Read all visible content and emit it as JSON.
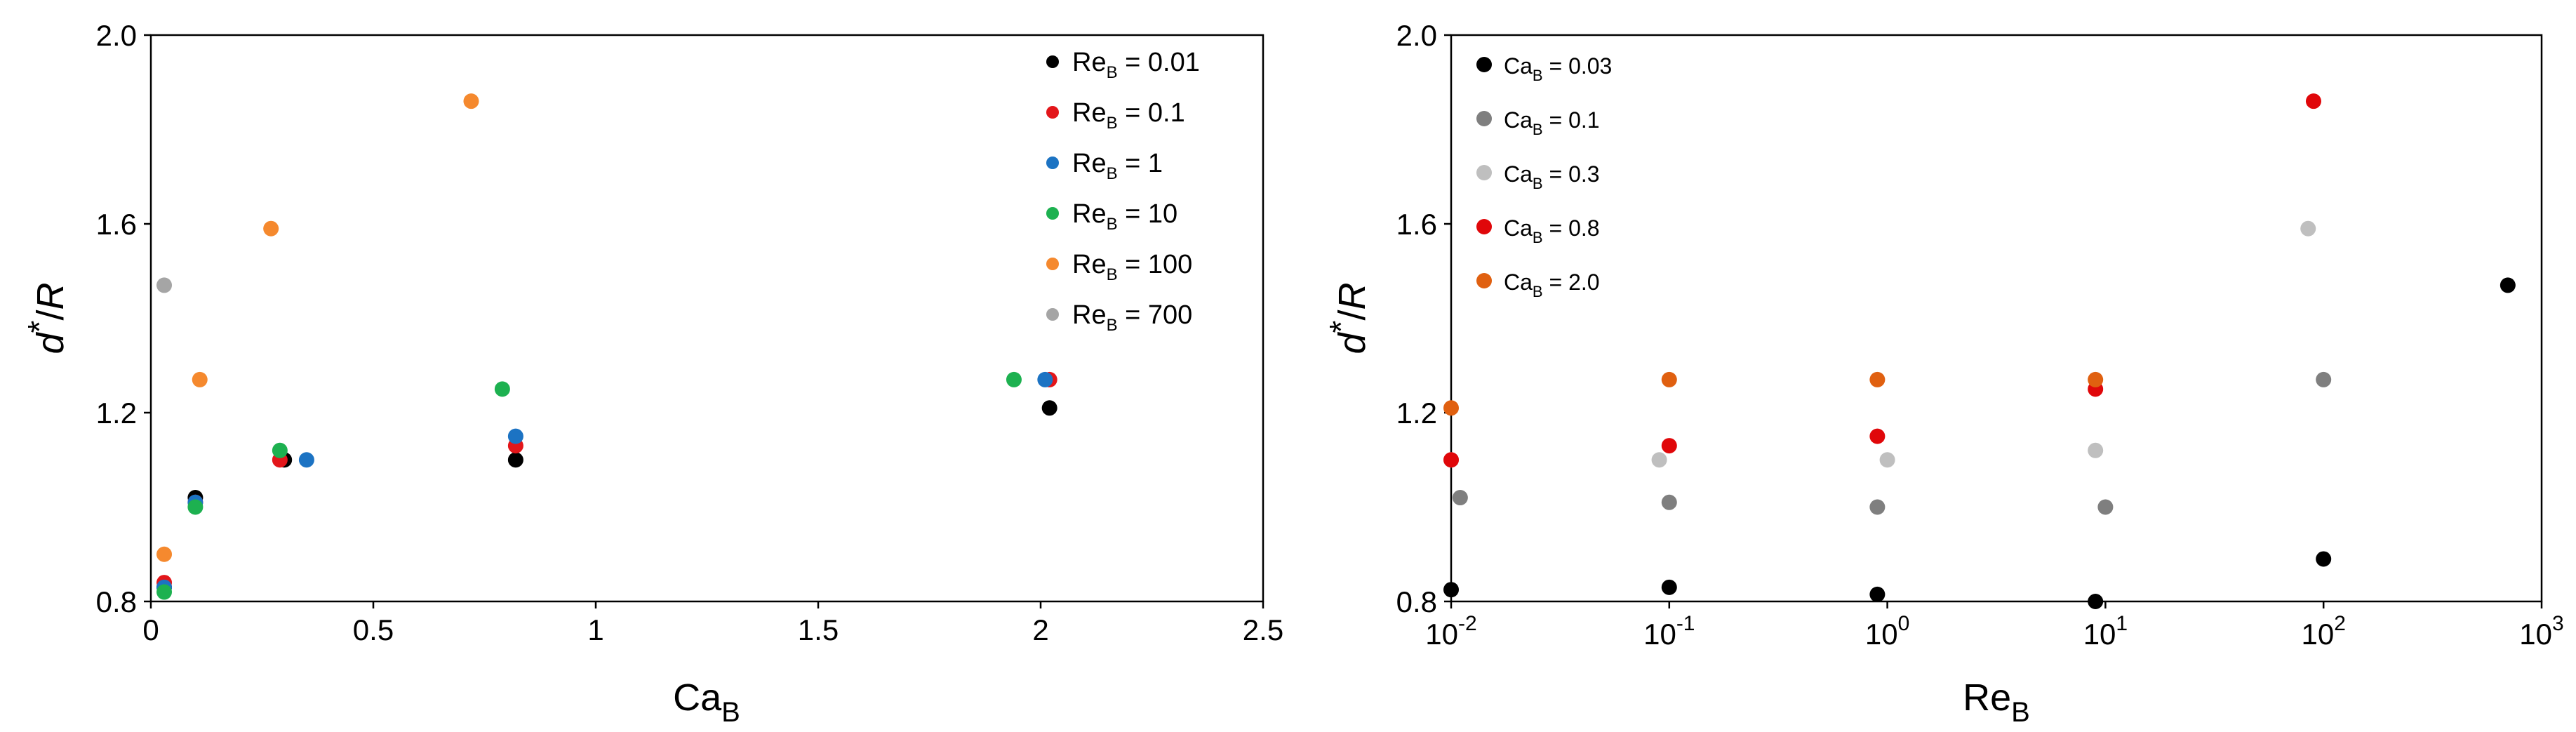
{
  "chart_data": [
    {
      "type": "scatter",
      "xlabel": "Ca",
      "xlabel_sub": "B",
      "ylabel": "d*/R",
      "xlim": [
        0,
        2.5
      ],
      "ylim": [
        0.8,
        2.0
      ],
      "x_ticks": [
        0,
        0.5,
        1,
        1.5,
        2,
        2.5
      ],
      "x_tick_labels": [
        "0",
        "0.5",
        "1",
        "1.5",
        "2",
        "2.5"
      ],
      "y_ticks": [
        0.8,
        1.2,
        1.6,
        2.0
      ],
      "y_tick_labels": [
        "0.8",
        "1.2",
        "1.6",
        "2.0"
      ],
      "legend_position": "top-right",
      "series": [
        {
          "name": "Re_B = 0.01",
          "label_main": "Re",
          "label_sub": "B",
          "label_value": " = 0.01",
          "color": "#000000",
          "points": [
            [
              0.03,
              0.83
            ],
            [
              0.1,
              1.02
            ],
            [
              0.3,
              1.1
            ],
            [
              0.82,
              1.1
            ],
            [
              2.02,
              1.21
            ]
          ]
        },
        {
          "name": "Re_B = 0.1",
          "label_main": "Re",
          "label_sub": "B",
          "label_value": " = 0.1",
          "color": "#e3161a",
          "points": [
            [
              0.03,
              0.84
            ],
            [
              0.1,
              1.01
            ],
            [
              0.29,
              1.1
            ],
            [
              0.82,
              1.13
            ],
            [
              2.02,
              1.27
            ]
          ]
        },
        {
          "name": "Re_B = 1",
          "label_main": "Re",
          "label_sub": "B",
          "label_value": " = 1",
          "color": "#1c73c3",
          "points": [
            [
              0.03,
              0.83
            ],
            [
              0.1,
              1.01
            ],
            [
              0.35,
              1.1
            ],
            [
              0.82,
              1.15
            ],
            [
              2.01,
              1.27
            ]
          ]
        },
        {
          "name": "Re_B = 10",
          "label_main": "Re",
          "label_sub": "B",
          "label_value": " = 10",
          "color": "#1db150",
          "points": [
            [
              0.03,
              0.82
            ],
            [
              0.1,
              1.0
            ],
            [
              0.29,
              1.12
            ],
            [
              0.79,
              1.25
            ],
            [
              1.94,
              1.27
            ]
          ]
        },
        {
          "name": "Re_B = 100",
          "label_main": "Re",
          "label_sub": "B",
          "label_value": " = 100",
          "color": "#f5892e",
          "points": [
            [
              0.03,
              0.9
            ],
            [
              0.11,
              1.27
            ],
            [
              0.27,
              1.59
            ],
            [
              0.72,
              1.86
            ]
          ]
        },
        {
          "name": "Re_B = 700",
          "label_main": "Re",
          "label_sub": "B",
          "label_value": " = 700",
          "color": "#a5a5a5",
          "points": [
            [
              0.03,
              1.47
            ]
          ]
        }
      ]
    },
    {
      "type": "scatter",
      "xlabel": "Re",
      "xlabel_sub": "B",
      "ylabel": "d*/R",
      "x_scale": "log",
      "xlim": [
        0.01,
        1000
      ],
      "ylim": [
        0.8,
        2.0
      ],
      "x_ticks": [
        0.01,
        0.1,
        1,
        10,
        100,
        1000
      ],
      "x_tick_base": "10",
      "x_tick_exponents": [
        "-2",
        "-1",
        "0",
        "1",
        "2",
        "3"
      ],
      "y_ticks": [
        0.8,
        1.2,
        1.6,
        2.0
      ],
      "y_tick_labels": [
        "0.8",
        "1.2",
        "1.6",
        "2.0"
      ],
      "legend_position": "top-left",
      "series": [
        {
          "name": "Ca_B = 0.03",
          "label_main": "Ca",
          "label_sub": "B",
          "label_value": " = 0.03",
          "color": "#000000",
          "points": [
            [
              0.01,
              0.825
            ],
            [
              0.1,
              0.83
            ],
            [
              0.9,
              0.815
            ],
            [
              9,
              0.8
            ],
            [
              100,
              0.89
            ],
            [
              700,
              1.47
            ]
          ]
        },
        {
          "name": "Ca_B = 0.1",
          "label_main": "Ca",
          "label_sub": "B",
          "label_value": " = 0.1",
          "color": "#7f7f7f",
          "points": [
            [
              0.011,
              1.02
            ],
            [
              0.1,
              1.01
            ],
            [
              0.9,
              1.0
            ],
            [
              10,
              1.0
            ],
            [
              100,
              1.27
            ]
          ]
        },
        {
          "name": "Ca_B = 0.3",
          "label_main": "Ca",
          "label_sub": "B",
          "label_value": " = 0.3",
          "color": "#bfbfbf",
          "points": [
            [
              0.01,
              1.1
            ],
            [
              0.09,
              1.1
            ],
            [
              1.0,
              1.1
            ],
            [
              9,
              1.12
            ],
            [
              85,
              1.59
            ]
          ]
        },
        {
          "name": "Ca_B = 0.8",
          "label_main": "Ca",
          "label_sub": "B",
          "label_value": " = 0.8",
          "color": "#e0070a",
          "points": [
            [
              0.01,
              1.1
            ],
            [
              0.1,
              1.13
            ],
            [
              0.9,
              1.15
            ],
            [
              9,
              1.25
            ],
            [
              90,
              1.86
            ]
          ]
        },
        {
          "name": "Ca_B = 2.0",
          "label_main": "Ca",
          "label_sub": "B",
          "label_value": " = 2.0",
          "color": "#e06010",
          "points": [
            [
              0.01,
              1.21
            ],
            [
              0.1,
              1.27
            ],
            [
              0.9,
              1.27
            ],
            [
              9,
              1.27
            ]
          ]
        }
      ]
    }
  ]
}
